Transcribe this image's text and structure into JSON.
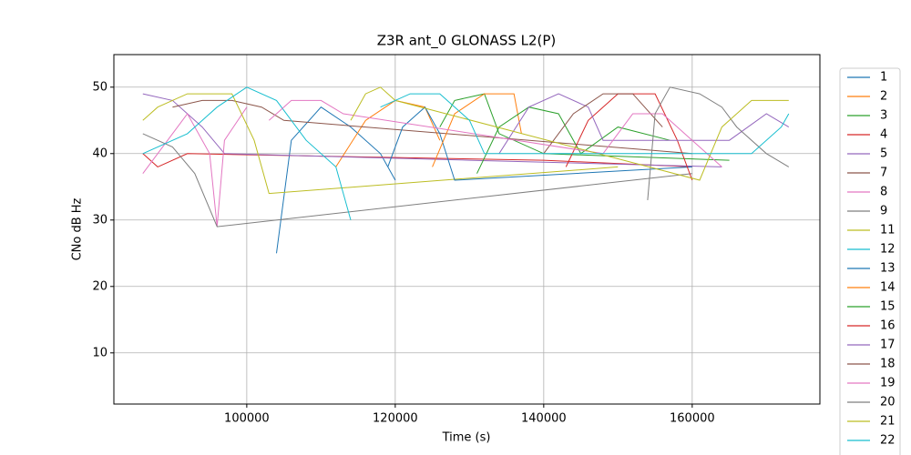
{
  "chart_data": {
    "type": "line",
    "title": "Z3R ant_0 GLONASS L2(P)",
    "x_label": "Time (s)",
    "y_label": "CNo dB Hz",
    "xlim": [
      82100,
      177200
    ],
    "ylim": [
      2.3,
      54.9
    ],
    "xticks": [
      100000,
      120000,
      140000,
      160000
    ],
    "yticks": [
      10,
      20,
      30,
      40,
      50
    ],
    "grid": true,
    "legend": "outside right",
    "series": [
      {
        "name": "1",
        "color": "#1f77b4",
        "x": [
          104000,
          106000,
          110000,
          114000,
          118000,
          120000
        ],
        "values": [
          25,
          42,
          47,
          44,
          40,
          36
        ]
      },
      {
        "name": "2",
        "color": "#ff7f0e",
        "x": [
          112000,
          116000,
          120000,
          124000,
          126000
        ],
        "values": [
          38,
          45,
          48,
          47,
          42
        ]
      },
      {
        "name": "3",
        "color": "#2ca02c",
        "x": [
          126000,
          128000,
          132000,
          134000,
          140000,
          165000
        ],
        "values": [
          44,
          48,
          49,
          43,
          40,
          39
        ]
      },
      {
        "name": "4",
        "color": "#d62728",
        "x": [
          86000,
          88000,
          92000,
          140000,
          160000
        ],
        "values": [
          40,
          38,
          40,
          39,
          38
        ]
      },
      {
        "name": "5",
        "color": "#9467bd",
        "x": [
          86000,
          90000,
          94000,
          97000,
          130000,
          164000
        ],
        "values": [
          49,
          48,
          44,
          40,
          39,
          38
        ]
      },
      {
        "name": "7",
        "color": "#8c564b",
        "x": [
          90000,
          94000,
          98000,
          102000,
          105000,
          160000
        ],
        "values": [
          47,
          48,
          48,
          47,
          45,
          40
        ]
      },
      {
        "name": "8",
        "color": "#e377c2",
        "x": [
          86000,
          88000,
          92000,
          95000,
          96000,
          97000,
          100000
        ],
        "values": [
          37,
          40,
          46,
          40,
          29,
          42,
          47
        ]
      },
      {
        "name": "9",
        "color": "#7f7f7f",
        "x": [
          86000,
          90000,
          93000,
          96000,
          160000
        ],
        "values": [
          43,
          41,
          37,
          29,
          37
        ]
      },
      {
        "name": "11",
        "color": "#bcbd22",
        "x": [
          86000,
          88000,
          92000,
          98000,
          101000,
          103000,
          150000
        ],
        "values": [
          45,
          47,
          49,
          49,
          42,
          34,
          38
        ]
      },
      {
        "name": "12",
        "color": "#17becf",
        "x": [
          86000,
          92000,
          96000,
          100000,
          104000,
          108000,
          112000,
          114000
        ],
        "values": [
          40,
          43,
          47,
          50,
          48,
          42,
          38,
          30
        ]
      },
      {
        "name": "13",
        "color": "#1f77b4",
        "x": [
          119000,
          121000,
          124000,
          126000,
          128000,
          160000
        ],
        "values": [
          38,
          44,
          47,
          43,
          36,
          38
        ]
      },
      {
        "name": "14",
        "color": "#ff7f0e",
        "x": [
          125000,
          128000,
          132000,
          136000,
          137000
        ],
        "values": [
          38,
          46,
          49,
          49,
          43
        ]
      },
      {
        "name": "15",
        "color": "#2ca02c",
        "x": [
          131000,
          134000,
          138000,
          142000,
          145000,
          150000,
          157000
        ],
        "values": [
          37,
          44,
          47,
          46,
          40,
          44,
          42
        ]
      },
      {
        "name": "16",
        "color": "#d62728",
        "x": [
          143000,
          146000,
          150000,
          155000,
          158000,
          160000
        ],
        "values": [
          38,
          45,
          49,
          49,
          42,
          36
        ]
      },
      {
        "name": "17",
        "color": "#9467bd",
        "x": [
          134000,
          138000,
          142000,
          146000,
          148000,
          165000,
          170000,
          173000
        ],
        "values": [
          40,
          47,
          49,
          47,
          42,
          42,
          46,
          44
        ]
      },
      {
        "name": "18",
        "color": "#8c564b",
        "x": [
          140000,
          144000,
          148000,
          152000,
          156000
        ],
        "values": [
          40,
          46,
          49,
          49,
          44
        ]
      },
      {
        "name": "19",
        "color": "#e377c2",
        "x": [
          103000,
          106000,
          110000,
          113000,
          148000,
          152000,
          156000,
          160000,
          164000
        ],
        "values": [
          45,
          48,
          48,
          46,
          40,
          46,
          46,
          42,
          38
        ]
      },
      {
        "name": "20",
        "color": "#7f7f7f",
        "x": [
          154000,
          155000,
          157000,
          161000,
          164000,
          166000,
          170000,
          173000
        ],
        "values": [
          33,
          46,
          50,
          49,
          47,
          44,
          40,
          38
        ]
      },
      {
        "name": "21",
        "color": "#bcbd22",
        "x": [
          114000,
          116000,
          118000,
          120000,
          161000,
          164000,
          168000,
          173000
        ],
        "values": [
          45,
          49,
          50,
          48,
          36,
          44,
          48,
          48
        ]
      },
      {
        "name": "22",
        "color": "#17becf",
        "x": [
          118000,
          122000,
          126000,
          130000,
          132000,
          168000,
          172000,
          173000
        ],
        "values": [
          47,
          49,
          49,
          45,
          40,
          40,
          44,
          46
        ]
      }
    ]
  }
}
